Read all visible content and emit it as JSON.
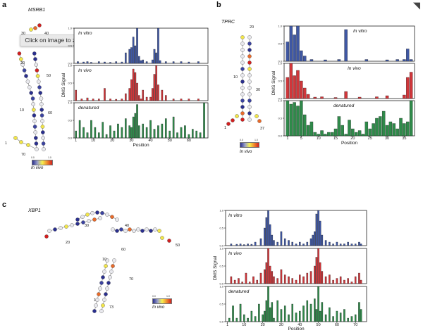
{
  "window": {
    "close_icon": "close-icon",
    "close_glyph": "◥"
  },
  "tooltip": {
    "text": "Click on image to zoom"
  },
  "panels": {
    "a": {
      "letter": "a",
      "gene": "MSRB1",
      "legend_caption": "In vivo",
      "legend_min": "0.0",
      "legend_max": "1.0"
    },
    "b": {
      "letter": "b",
      "gene": "TPRC",
      "legend_caption": "In vivo",
      "legend_min": "0.0",
      "legend_max": "1.0"
    },
    "c": {
      "letter": "c",
      "gene": "XBP1",
      "legend_caption": "In vivo",
      "legend_min": "0.0",
      "legend_max": "1.0"
    }
  },
  "structure_labels": {
    "a": [
      "30",
      "40",
      "20",
      "50",
      "10",
      "60",
      "1",
      "70"
    ],
    "b": [
      "20",
      "10",
      "30",
      "1",
      "37"
    ],
    "c": [
      "30",
      "40",
      "20",
      "50",
      "60",
      "10",
      "70",
      "1",
      "73"
    ]
  },
  "colors": {
    "in_vitro": "#3f57a3",
    "in_vivo": "#d0363a",
    "denatured": "#2f8a4a",
    "legend_low": "#2a2f8e",
    "legend_high": "#d21f1f"
  },
  "chart_data": [
    {
      "id": "a",
      "type": "bar",
      "xlabel": "Position",
      "ylabel": "DMS Signal",
      "xticks": [
        1,
        10,
        20,
        30,
        40,
        50,
        60
      ],
      "xlim": [
        0,
        70
      ],
      "ylim": [
        0,
        1.0
      ],
      "yticks": [
        "0.0",
        "0.5",
        "1.0"
      ],
      "series": [
        {
          "name": "In vitro",
          "color": "#3f57a3",
          "x": [
            2,
            5,
            7,
            9,
            13,
            16,
            19,
            22,
            25,
            27,
            29,
            30,
            31,
            32,
            33,
            34,
            35,
            36,
            38,
            41,
            42,
            43,
            44,
            45,
            48,
            52,
            56,
            60,
            65
          ],
          "values": [
            0.05,
            0.04,
            0.05,
            0.03,
            0.05,
            0.04,
            0.03,
            0.05,
            0.04,
            0.3,
            0.4,
            0.45,
            0.75,
            0.5,
            1.0,
            0.2,
            0.08,
            0.1,
            0.05,
            0.1,
            0.4,
            0.3,
            1.0,
            0.08,
            0.05,
            0.05,
            0.05,
            0.04,
            0.05
          ]
        },
        {
          "name": "In vivo",
          "color": "#d0363a",
          "x": [
            1,
            4,
            7,
            10,
            13,
            16,
            19,
            22,
            25,
            27,
            29,
            30,
            31,
            32,
            33,
            34,
            35,
            36,
            38,
            40,
            41,
            42,
            43,
            44,
            46,
            48,
            52,
            56,
            60,
            65
          ],
          "values": [
            0.3,
            0.05,
            0.08,
            0.05,
            0.05,
            0.35,
            0.05,
            0.04,
            0.05,
            0.2,
            0.35,
            0.6,
            0.9,
            0.8,
            0.5,
            0.15,
            0.05,
            0.3,
            0.1,
            0.1,
            0.35,
            0.75,
            1.0,
            0.45,
            0.3,
            0.15,
            0.05,
            0.05,
            0.05,
            0.05
          ]
        },
        {
          "name": "denatured",
          "color": "#2f8a4a",
          "x": [
            1,
            3,
            5,
            7,
            9,
            11,
            13,
            15,
            17,
            19,
            21,
            23,
            25,
            27,
            29,
            30,
            31,
            32,
            33,
            34,
            36,
            38,
            40,
            42,
            44,
            46,
            48,
            50,
            52,
            54,
            56,
            58,
            60,
            62,
            64,
            66,
            68
          ],
          "values": [
            0.2,
            0.5,
            0.3,
            0.15,
            0.5,
            0.3,
            0.15,
            0.45,
            0.1,
            0.35,
            0.2,
            0.4,
            0.3,
            0.55,
            0.35,
            0.3,
            0.6,
            0.7,
            0.95,
            0.35,
            0.4,
            0.3,
            0.5,
            0.25,
            0.35,
            0.4,
            0.55,
            0.2,
            0.6,
            0.15,
            0.3,
            0.35,
            0.1,
            0.25,
            0.2,
            0.15,
            1.0
          ]
        }
      ]
    },
    {
      "id": "b",
      "type": "bar",
      "xlabel": "Position",
      "ylabel": "DMS Signal",
      "xticks": [
        1,
        5,
        10,
        15,
        20,
        25,
        30,
        35
      ],
      "xlim": [
        0,
        38
      ],
      "ylim": [
        0,
        1.0
      ],
      "yticks": [
        "0.0",
        "0.5",
        "1.0"
      ],
      "series": [
        {
          "name": "In vitro",
          "color": "#3f57a3",
          "x": [
            1,
            2,
            3,
            4,
            5,
            6,
            8,
            12,
            16,
            18,
            24,
            30,
            33,
            35,
            36,
            37
          ],
          "values": [
            0.55,
            1.0,
            0.75,
            1.0,
            0.3,
            0.15,
            0.05,
            0.04,
            0.05,
            0.9,
            0.05,
            0.04,
            0.05,
            0.05,
            0.35,
            0.05
          ]
        },
        {
          "name": "In vivo",
          "color": "#d0363a",
          "x": [
            1,
            2,
            3,
            4,
            5,
            6,
            7,
            9,
            11,
            15,
            18,
            22,
            27,
            30,
            35,
            36,
            37
          ],
          "values": [
            0.6,
            1.0,
            0.65,
            0.8,
            0.5,
            0.3,
            0.12,
            0.04,
            0.05,
            0.03,
            0.2,
            0.04,
            0.05,
            0.08,
            0.1,
            0.6,
            0.75
          ]
        },
        {
          "name": "denatured",
          "color": "#2f8a4a",
          "x": [
            1,
            2,
            3,
            4,
            5,
            6,
            7,
            8,
            9,
            10,
            11,
            12,
            13,
            14,
            15,
            16,
            17,
            18,
            19,
            20,
            21,
            22,
            23,
            24,
            25,
            26,
            27,
            28,
            29,
            30,
            31,
            32,
            33,
            34,
            35,
            36,
            37
          ],
          "values": [
            1.0,
            0.9,
            0.95,
            0.85,
            1.0,
            0.6,
            0.3,
            0.4,
            0.1,
            0.05,
            0.15,
            0.05,
            0.1,
            0.1,
            0.2,
            0.55,
            0.3,
            0.05,
            0.45,
            0.2,
            0.1,
            0.15,
            0.05,
            0.4,
            0.2,
            0.35,
            0.5,
            0.55,
            0.7,
            0.3,
            0.4,
            0.35,
            0.2,
            0.5,
            0.35,
            0.4,
            1.0
          ]
        }
      ]
    },
    {
      "id": "c",
      "type": "bar",
      "xlabel": "Position",
      "ylabel": "DMS Signal",
      "xticks": [
        1,
        10,
        20,
        30,
        40,
        50,
        60,
        70
      ],
      "xlim": [
        0,
        76
      ],
      "ylim": [
        0,
        1.0
      ],
      "yticks": [
        "0.0",
        "0.5",
        "1.0"
      ],
      "series": [
        {
          "name": "In vitro",
          "color": "#3f57a3",
          "x": [
            3,
            6,
            8,
            10,
            12,
            14,
            16,
            19,
            21,
            22,
            23,
            24,
            25,
            26,
            28,
            30,
            32,
            34,
            36,
            38,
            40,
            42,
            44,
            46,
            47,
            48,
            49,
            50,
            51,
            52,
            54,
            56,
            58,
            60,
            62,
            64,
            66,
            68,
            70,
            72,
            73
          ],
          "values": [
            0.05,
            0.04,
            0.05,
            0.03,
            0.05,
            0.04,
            0.1,
            0.2,
            0.5,
            0.8,
            1.0,
            0.6,
            0.3,
            0.15,
            0.1,
            0.4,
            0.2,
            0.15,
            0.1,
            0.05,
            0.1,
            0.05,
            0.1,
            0.2,
            0.3,
            0.4,
            0.9,
            1.0,
            0.7,
            0.3,
            0.15,
            0.1,
            0.05,
            0.1,
            0.05,
            0.05,
            0.1,
            0.05,
            0.05,
            0.1,
            0.05
          ]
        },
        {
          "name": "In vivo",
          "color": "#d0363a",
          "x": [
            3,
            5,
            7,
            9,
            11,
            13,
            15,
            17,
            19,
            21,
            22,
            23,
            24,
            25,
            26,
            28,
            30,
            32,
            34,
            36,
            38,
            40,
            42,
            44,
            46,
            48,
            49,
            50,
            51,
            52,
            54,
            56,
            58,
            60,
            62,
            64,
            66,
            68,
            70,
            72,
            73
          ],
          "values": [
            0.2,
            0.1,
            0.15,
            0.05,
            0.3,
            0.05,
            0.2,
            0.1,
            0.3,
            0.4,
            0.6,
            1.0,
            0.5,
            0.35,
            0.2,
            0.15,
            0.4,
            0.25,
            0.2,
            0.15,
            0.1,
            0.25,
            0.2,
            0.3,
            0.35,
            0.5,
            0.75,
            1.0,
            0.6,
            0.35,
            0.2,
            0.25,
            0.1,
            0.15,
            0.2,
            0.1,
            0.15,
            0.05,
            0.2,
            0.3,
            0.1
          ]
        },
        {
          "name": "denatured",
          "color": "#2f8a4a",
          "x": [
            2,
            4,
            6,
            8,
            10,
            12,
            14,
            16,
            18,
            20,
            21,
            22,
            23,
            24,
            25,
            26,
            28,
            30,
            32,
            34,
            36,
            38,
            40,
            42,
            44,
            46,
            48,
            49,
            50,
            51,
            52,
            54,
            56,
            58,
            60,
            62,
            64,
            66,
            68,
            70,
            72,
            73
          ],
          "values": [
            0.1,
            0.45,
            0.1,
            0.5,
            0.2,
            0.1,
            0.3,
            0.15,
            0.5,
            0.2,
            0.3,
            0.6,
            1.0,
            0.4,
            0.55,
            0.1,
            0.6,
            0.35,
            0.45,
            0.2,
            0.5,
            0.25,
            0.3,
            0.45,
            0.6,
            0.5,
            0.65,
            0.35,
            1.0,
            0.3,
            0.55,
            0.2,
            0.4,
            0.15,
            0.3,
            0.25,
            0.35,
            0.1,
            0.15,
            0.2,
            0.55,
            0.35
          ]
        }
      ]
    }
  ]
}
